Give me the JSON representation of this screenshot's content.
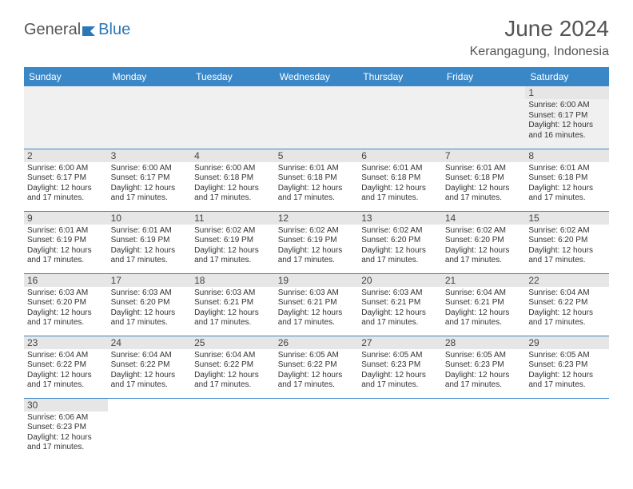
{
  "logo": {
    "part1": "General",
    "part2": "Blue"
  },
  "title": "June 2024",
  "location": "Kerangagung, Indonesia",
  "colors": {
    "header_bg": "#3a87c8",
    "header_text": "#ffffff",
    "daynum_bg": "#e6e6e6",
    "border": "#3a87c8",
    "logo_accent": "#2a78b8",
    "text": "#333333"
  },
  "typography": {
    "title_fontsize": 28,
    "location_fontsize": 16,
    "header_fontsize": 12,
    "cell_fontsize": 10
  },
  "week_headers": [
    "Sunday",
    "Monday",
    "Tuesday",
    "Wednesday",
    "Thursday",
    "Friday",
    "Saturday"
  ],
  "weeks": [
    [
      null,
      null,
      null,
      null,
      null,
      null,
      {
        "n": "1",
        "sr": "6:00 AM",
        "ss": "6:17 PM",
        "dl": "12 hours and 16 minutes."
      }
    ],
    [
      {
        "n": "2",
        "sr": "6:00 AM",
        "ss": "6:17 PM",
        "dl": "12 hours and 17 minutes."
      },
      {
        "n": "3",
        "sr": "6:00 AM",
        "ss": "6:17 PM",
        "dl": "12 hours and 17 minutes."
      },
      {
        "n": "4",
        "sr": "6:00 AM",
        "ss": "6:18 PM",
        "dl": "12 hours and 17 minutes."
      },
      {
        "n": "5",
        "sr": "6:01 AM",
        "ss": "6:18 PM",
        "dl": "12 hours and 17 minutes."
      },
      {
        "n": "6",
        "sr": "6:01 AM",
        "ss": "6:18 PM",
        "dl": "12 hours and 17 minutes."
      },
      {
        "n": "7",
        "sr": "6:01 AM",
        "ss": "6:18 PM",
        "dl": "12 hours and 17 minutes."
      },
      {
        "n": "8",
        "sr": "6:01 AM",
        "ss": "6:18 PM",
        "dl": "12 hours and 17 minutes."
      }
    ],
    [
      {
        "n": "9",
        "sr": "6:01 AM",
        "ss": "6:19 PM",
        "dl": "12 hours and 17 minutes."
      },
      {
        "n": "10",
        "sr": "6:01 AM",
        "ss": "6:19 PM",
        "dl": "12 hours and 17 minutes."
      },
      {
        "n": "11",
        "sr": "6:02 AM",
        "ss": "6:19 PM",
        "dl": "12 hours and 17 minutes."
      },
      {
        "n": "12",
        "sr": "6:02 AM",
        "ss": "6:19 PM",
        "dl": "12 hours and 17 minutes."
      },
      {
        "n": "13",
        "sr": "6:02 AM",
        "ss": "6:20 PM",
        "dl": "12 hours and 17 minutes."
      },
      {
        "n": "14",
        "sr": "6:02 AM",
        "ss": "6:20 PM",
        "dl": "12 hours and 17 minutes."
      },
      {
        "n": "15",
        "sr": "6:02 AM",
        "ss": "6:20 PM",
        "dl": "12 hours and 17 minutes."
      }
    ],
    [
      {
        "n": "16",
        "sr": "6:03 AM",
        "ss": "6:20 PM",
        "dl": "12 hours and 17 minutes."
      },
      {
        "n": "17",
        "sr": "6:03 AM",
        "ss": "6:20 PM",
        "dl": "12 hours and 17 minutes."
      },
      {
        "n": "18",
        "sr": "6:03 AM",
        "ss": "6:21 PM",
        "dl": "12 hours and 17 minutes."
      },
      {
        "n": "19",
        "sr": "6:03 AM",
        "ss": "6:21 PM",
        "dl": "12 hours and 17 minutes."
      },
      {
        "n": "20",
        "sr": "6:03 AM",
        "ss": "6:21 PM",
        "dl": "12 hours and 17 minutes."
      },
      {
        "n": "21",
        "sr": "6:04 AM",
        "ss": "6:21 PM",
        "dl": "12 hours and 17 minutes."
      },
      {
        "n": "22",
        "sr": "6:04 AM",
        "ss": "6:22 PM",
        "dl": "12 hours and 17 minutes."
      }
    ],
    [
      {
        "n": "23",
        "sr": "6:04 AM",
        "ss": "6:22 PM",
        "dl": "12 hours and 17 minutes."
      },
      {
        "n": "24",
        "sr": "6:04 AM",
        "ss": "6:22 PM",
        "dl": "12 hours and 17 minutes."
      },
      {
        "n": "25",
        "sr": "6:04 AM",
        "ss": "6:22 PM",
        "dl": "12 hours and 17 minutes."
      },
      {
        "n": "26",
        "sr": "6:05 AM",
        "ss": "6:22 PM",
        "dl": "12 hours and 17 minutes."
      },
      {
        "n": "27",
        "sr": "6:05 AM",
        "ss": "6:23 PM",
        "dl": "12 hours and 17 minutes."
      },
      {
        "n": "28",
        "sr": "6:05 AM",
        "ss": "6:23 PM",
        "dl": "12 hours and 17 minutes."
      },
      {
        "n": "29",
        "sr": "6:05 AM",
        "ss": "6:23 PM",
        "dl": "12 hours and 17 minutes."
      }
    ],
    [
      {
        "n": "30",
        "sr": "6:06 AM",
        "ss": "6:23 PM",
        "dl": "12 hours and 17 minutes."
      },
      null,
      null,
      null,
      null,
      null,
      null
    ]
  ],
  "labels": {
    "sunrise": "Sunrise:",
    "sunset": "Sunset:",
    "daylight": "Daylight:"
  }
}
